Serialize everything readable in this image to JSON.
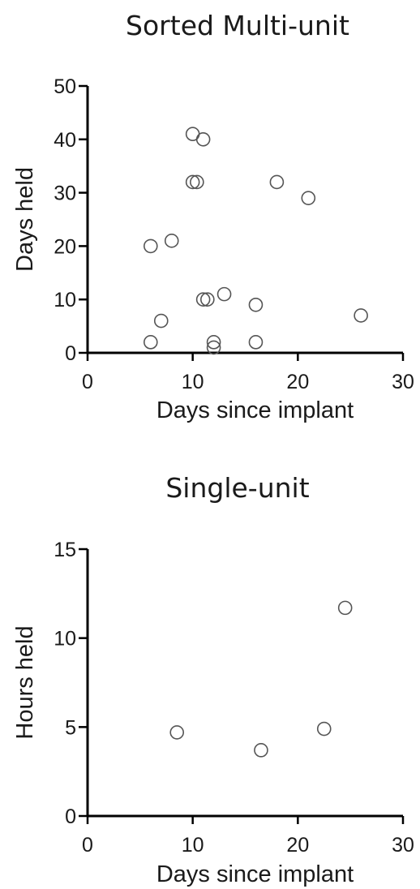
{
  "chart_data": [
    {
      "type": "scatter",
      "title": "Sorted Multi-unit",
      "xlabel": "Days since implant",
      "ylabel": "Days held",
      "xlim": [
        0,
        30
      ],
      "ylim": [
        0,
        50
      ],
      "xticks": [
        0,
        10,
        20,
        30
      ],
      "yticks": [
        0,
        10,
        20,
        30,
        40,
        50
      ],
      "grid": false,
      "legend": "none",
      "marker": "open-circle",
      "points": [
        {
          "x": 10,
          "y": 41
        },
        {
          "x": 11,
          "y": 40
        },
        {
          "x": 10,
          "y": 32
        },
        {
          "x": 10.4,
          "y": 32
        },
        {
          "x": 18,
          "y": 32
        },
        {
          "x": 21,
          "y": 29
        },
        {
          "x": 8,
          "y": 21
        },
        {
          "x": 6,
          "y": 20
        },
        {
          "x": 13,
          "y": 11
        },
        {
          "x": 11,
          "y": 10
        },
        {
          "x": 11.4,
          "y": 10
        },
        {
          "x": 16,
          "y": 9
        },
        {
          "x": 26,
          "y": 7
        },
        {
          "x": 7,
          "y": 6
        },
        {
          "x": 6,
          "y": 2
        },
        {
          "x": 12,
          "y": 2
        },
        {
          "x": 16,
          "y": 2
        },
        {
          "x": 12,
          "y": 1
        }
      ]
    },
    {
      "type": "scatter",
      "title": "Single-unit",
      "xlabel": "Days since implant",
      "ylabel": "Hours held",
      "xlim": [
        0,
        30
      ],
      "ylim": [
        0,
        15
      ],
      "xticks": [
        0,
        10,
        20,
        30
      ],
      "yticks": [
        0,
        5,
        10,
        15
      ],
      "grid": false,
      "legend": "none",
      "marker": "open-circle",
      "points": [
        {
          "x": 8.5,
          "y": 4.7
        },
        {
          "x": 16.5,
          "y": 3.7
        },
        {
          "x": 22.5,
          "y": 4.9
        },
        {
          "x": 24.5,
          "y": 11.7
        }
      ]
    }
  ]
}
